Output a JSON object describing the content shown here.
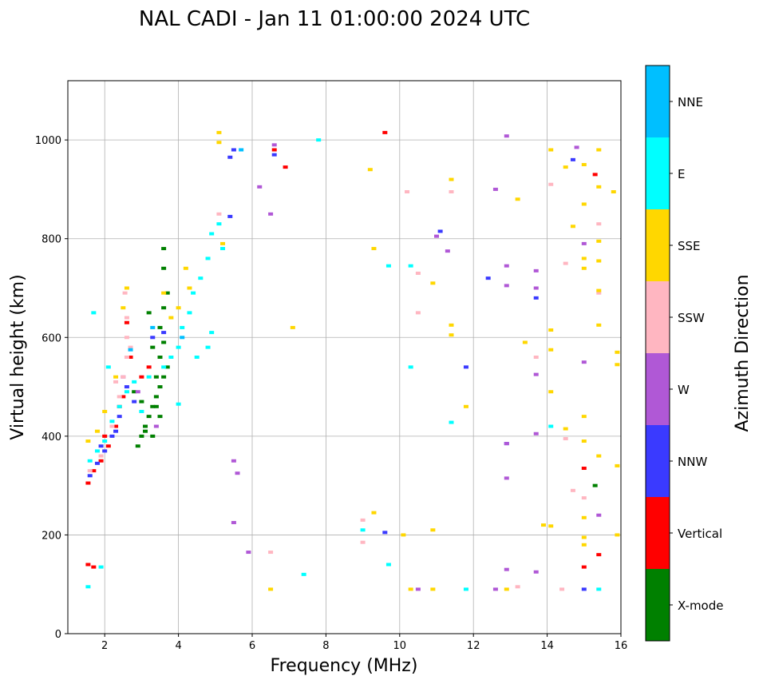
{
  "chart_data": {
    "type": "scatter",
    "title": "NAL CADI - Jan 11 01:00:00 2024 UTC",
    "xlabel": "Frequency (MHz)",
    "ylabel": "Virtual height (km)",
    "xlim": [
      1,
      16
    ],
    "ylim": [
      0,
      1120
    ],
    "x_ticks": [
      2,
      4,
      6,
      8,
      10,
      12,
      14,
      16
    ],
    "y_ticks": [
      0,
      200,
      400,
      600,
      800,
      1000
    ],
    "grid": true,
    "colorbar": {
      "label": "Azimuth Direction",
      "categories": [
        "X-mode",
        "Vertical",
        "NNW",
        "W",
        "SSW",
        "SSE",
        "E",
        "NNE"
      ],
      "colors": [
        "#008000",
        "#ff0000",
        "#3a3aff",
        "#b058d6",
        "#ffb6c1",
        "#ffd700",
        "#00ffff",
        "#00bfff"
      ]
    },
    "series": [
      {
        "name": "X-mode",
        "points": [
          [
            2.9,
            380
          ],
          [
            3.0,
            400
          ],
          [
            3.1,
            420
          ],
          [
            3.2,
            440
          ],
          [
            3.3,
            460
          ],
          [
            3.4,
            480
          ],
          [
            3.5,
            500
          ],
          [
            3.6,
            520
          ],
          [
            3.5,
            560
          ],
          [
            3.6,
            590
          ],
          [
            3.5,
            620
          ],
          [
            3.6,
            660
          ],
          [
            3.7,
            690
          ],
          [
            3.6,
            740
          ],
          [
            3.6,
            780
          ],
          [
            3.2,
            650
          ],
          [
            3.0,
            470
          ],
          [
            2.8,
            490
          ],
          [
            3.3,
            400
          ],
          [
            3.4,
            520
          ],
          [
            3.7,
            540
          ],
          [
            3.3,
            580
          ],
          [
            3.1,
            410
          ],
          [
            3.4,
            460
          ],
          [
            3.5,
            440
          ],
          [
            15.3,
            300
          ]
        ]
      },
      {
        "name": "Vertical",
        "points": [
          [
            1.55,
            305
          ],
          [
            1.7,
            330
          ],
          [
            1.9,
            350
          ],
          [
            2.1,
            380
          ],
          [
            2.3,
            420
          ],
          [
            2.5,
            480
          ],
          [
            2.7,
            560
          ],
          [
            2.6,
            630
          ],
          [
            3.0,
            520
          ],
          [
            3.2,
            540
          ],
          [
            1.55,
            140
          ],
          [
            1.7,
            135
          ],
          [
            6.6,
            980
          ],
          [
            6.9,
            945
          ],
          [
            9.6,
            1015
          ],
          [
            15.0,
            335
          ],
          [
            15.4,
            160
          ],
          [
            15.0,
            135
          ],
          [
            15.3,
            930
          ],
          [
            2.0,
            400
          ],
          [
            2.4,
            460
          ]
        ]
      },
      {
        "name": "NNW",
        "points": [
          [
            1.6,
            320
          ],
          [
            1.8,
            345
          ],
          [
            2.0,
            370
          ],
          [
            2.2,
            400
          ],
          [
            2.4,
            440
          ],
          [
            2.6,
            500
          ],
          [
            2.8,
            470
          ],
          [
            3.3,
            600
          ],
          [
            3.6,
            610
          ],
          [
            5.4,
            965
          ],
          [
            5.5,
            980
          ],
          [
            5.4,
            845
          ],
          [
            6.6,
            970
          ],
          [
            11.1,
            815
          ],
          [
            11.8,
            540
          ],
          [
            12.4,
            720
          ],
          [
            12.9,
            385
          ],
          [
            13.7,
            680
          ],
          [
            14.7,
            960
          ],
          [
            15.0,
            90
          ],
          [
            9.6,
            205
          ],
          [
            1.9,
            380
          ],
          [
            2.3,
            410
          ]
        ]
      },
      {
        "name": "W",
        "points": [
          [
            2.5,
            520
          ],
          [
            2.9,
            490
          ],
          [
            3.4,
            420
          ],
          [
            5.5,
            350
          ],
          [
            5.6,
            325
          ],
          [
            5.5,
            225
          ],
          [
            5.9,
            165
          ],
          [
            6.2,
            905
          ],
          [
            6.5,
            850
          ],
          [
            6.6,
            990
          ],
          [
            11.0,
            805
          ],
          [
            11.3,
            775
          ],
          [
            12.6,
            900
          ],
          [
            12.9,
            1008
          ],
          [
            12.9,
            745
          ],
          [
            12.9,
            705
          ],
          [
            12.9,
            385
          ],
          [
            12.9,
            315
          ],
          [
            12.9,
            130
          ],
          [
            13.7,
            735
          ],
          [
            13.7,
            700
          ],
          [
            13.7,
            525
          ],
          [
            13.7,
            405
          ],
          [
            13.7,
            125
          ],
          [
            15.0,
            790
          ],
          [
            15.0,
            550
          ],
          [
            15.4,
            240
          ],
          [
            10.5,
            90
          ],
          [
            12.6,
            90
          ],
          [
            14.8,
            985
          ]
        ]
      },
      {
        "name": "SSW",
        "points": [
          [
            1.6,
            330
          ],
          [
            1.9,
            360
          ],
          [
            2.2,
            420
          ],
          [
            2.4,
            480
          ],
          [
            2.5,
            520
          ],
          [
            2.6,
            560
          ],
          [
            2.6,
            600
          ],
          [
            2.6,
            640
          ],
          [
            2.55,
            690
          ],
          [
            2.7,
            580
          ],
          [
            2.3,
            510
          ],
          [
            5.1,
            850
          ],
          [
            6.5,
            165
          ],
          [
            9.0,
            230
          ],
          [
            9.0,
            185
          ],
          [
            10.2,
            895
          ],
          [
            10.5,
            730
          ],
          [
            10.5,
            650
          ],
          [
            11.4,
            895
          ],
          [
            13.7,
            560
          ],
          [
            14.1,
            910
          ],
          [
            14.5,
            750
          ],
          [
            14.7,
            290
          ],
          [
            15.0,
            275
          ],
          [
            15.4,
            830
          ],
          [
            15.4,
            690
          ],
          [
            13.2,
            95
          ],
          [
            14.4,
            90
          ],
          [
            14.5,
            395
          ]
        ]
      },
      {
        "name": "SSE",
        "points": [
          [
            1.55,
            390
          ],
          [
            1.8,
            410
          ],
          [
            2.0,
            450
          ],
          [
            2.3,
            520
          ],
          [
            2.5,
            660
          ],
          [
            2.6,
            700
          ],
          [
            3.6,
            690
          ],
          [
            3.8,
            640
          ],
          [
            4.0,
            660
          ],
          [
            4.2,
            740
          ],
          [
            4.3,
            700
          ],
          [
            5.1,
            1015
          ],
          [
            5.1,
            995
          ],
          [
            5.2,
            790
          ],
          [
            7.1,
            620
          ],
          [
            9.2,
            940
          ],
          [
            9.3,
            780
          ],
          [
            9.3,
            245
          ],
          [
            10.1,
            200
          ],
          [
            10.9,
            710
          ],
          [
            10.9,
            210
          ],
          [
            11.4,
            920
          ],
          [
            11.4,
            625
          ],
          [
            11.4,
            605
          ],
          [
            11.8,
            460
          ],
          [
            13.2,
            880
          ],
          [
            13.4,
            590
          ],
          [
            13.9,
            220
          ],
          [
            14.1,
            980
          ],
          [
            14.1,
            615
          ],
          [
            14.1,
            575
          ],
          [
            14.1,
            490
          ],
          [
            14.1,
            218
          ],
          [
            14.5,
            945
          ],
          [
            14.5,
            415
          ],
          [
            14.7,
            825
          ],
          [
            15.0,
            950
          ],
          [
            15.0,
            870
          ],
          [
            15.0,
            760
          ],
          [
            15.0,
            740
          ],
          [
            15.0,
            440
          ],
          [
            15.0,
            390
          ],
          [
            15.0,
            235
          ],
          [
            15.0,
            195
          ],
          [
            15.0,
            180
          ],
          [
            15.4,
            980
          ],
          [
            15.4,
            905
          ],
          [
            15.4,
            795
          ],
          [
            15.4,
            755
          ],
          [
            15.4,
            625
          ],
          [
            15.4,
            695
          ],
          [
            15.4,
            360
          ],
          [
            15.8,
            895
          ],
          [
            15.9,
            570
          ],
          [
            15.9,
            545
          ],
          [
            15.9,
            340
          ],
          [
            15.9,
            200
          ],
          [
            10.3,
            90
          ],
          [
            10.9,
            90
          ],
          [
            6.5,
            90
          ],
          [
            12.9,
            90
          ]
        ]
      },
      {
        "name": "E",
        "points": [
          [
            1.6,
            350
          ],
          [
            1.8,
            370
          ],
          [
            2.0,
            390
          ],
          [
            2.2,
            430
          ],
          [
            2.4,
            460
          ],
          [
            2.6,
            490
          ],
          [
            2.8,
            510
          ],
          [
            3.0,
            450
          ],
          [
            3.2,
            520
          ],
          [
            3.6,
            540
          ],
          [
            3.8,
            560
          ],
          [
            4.0,
            580
          ],
          [
            4.1,
            620
          ],
          [
            4.3,
            650
          ],
          [
            4.4,
            690
          ],
          [
            4.6,
            720
          ],
          [
            4.8,
            760
          ],
          [
            4.9,
            810
          ],
          [
            5.1,
            830
          ],
          [
            5.2,
            780
          ],
          [
            4.5,
            560
          ],
          [
            4.0,
            465
          ],
          [
            4.8,
            580
          ],
          [
            4.9,
            610
          ],
          [
            1.55,
            95
          ],
          [
            1.9,
            135
          ],
          [
            7.4,
            120
          ],
          [
            7.8,
            1000
          ],
          [
            9.0,
            210
          ],
          [
            9.7,
            745
          ],
          [
            9.7,
            140
          ],
          [
            10.3,
            745
          ],
          [
            10.3,
            540
          ],
          [
            11.4,
            428
          ],
          [
            11.8,
            90
          ],
          [
            14.1,
            420
          ],
          [
            15.4,
            90
          ],
          [
            1.7,
            650
          ],
          [
            2.1,
            540
          ]
        ]
      },
      {
        "name": "NNE",
        "points": [
          [
            5.7,
            980
          ],
          [
            2.7,
            575
          ],
          [
            3.3,
            620
          ],
          [
            4.1,
            600
          ]
        ]
      }
    ]
  }
}
